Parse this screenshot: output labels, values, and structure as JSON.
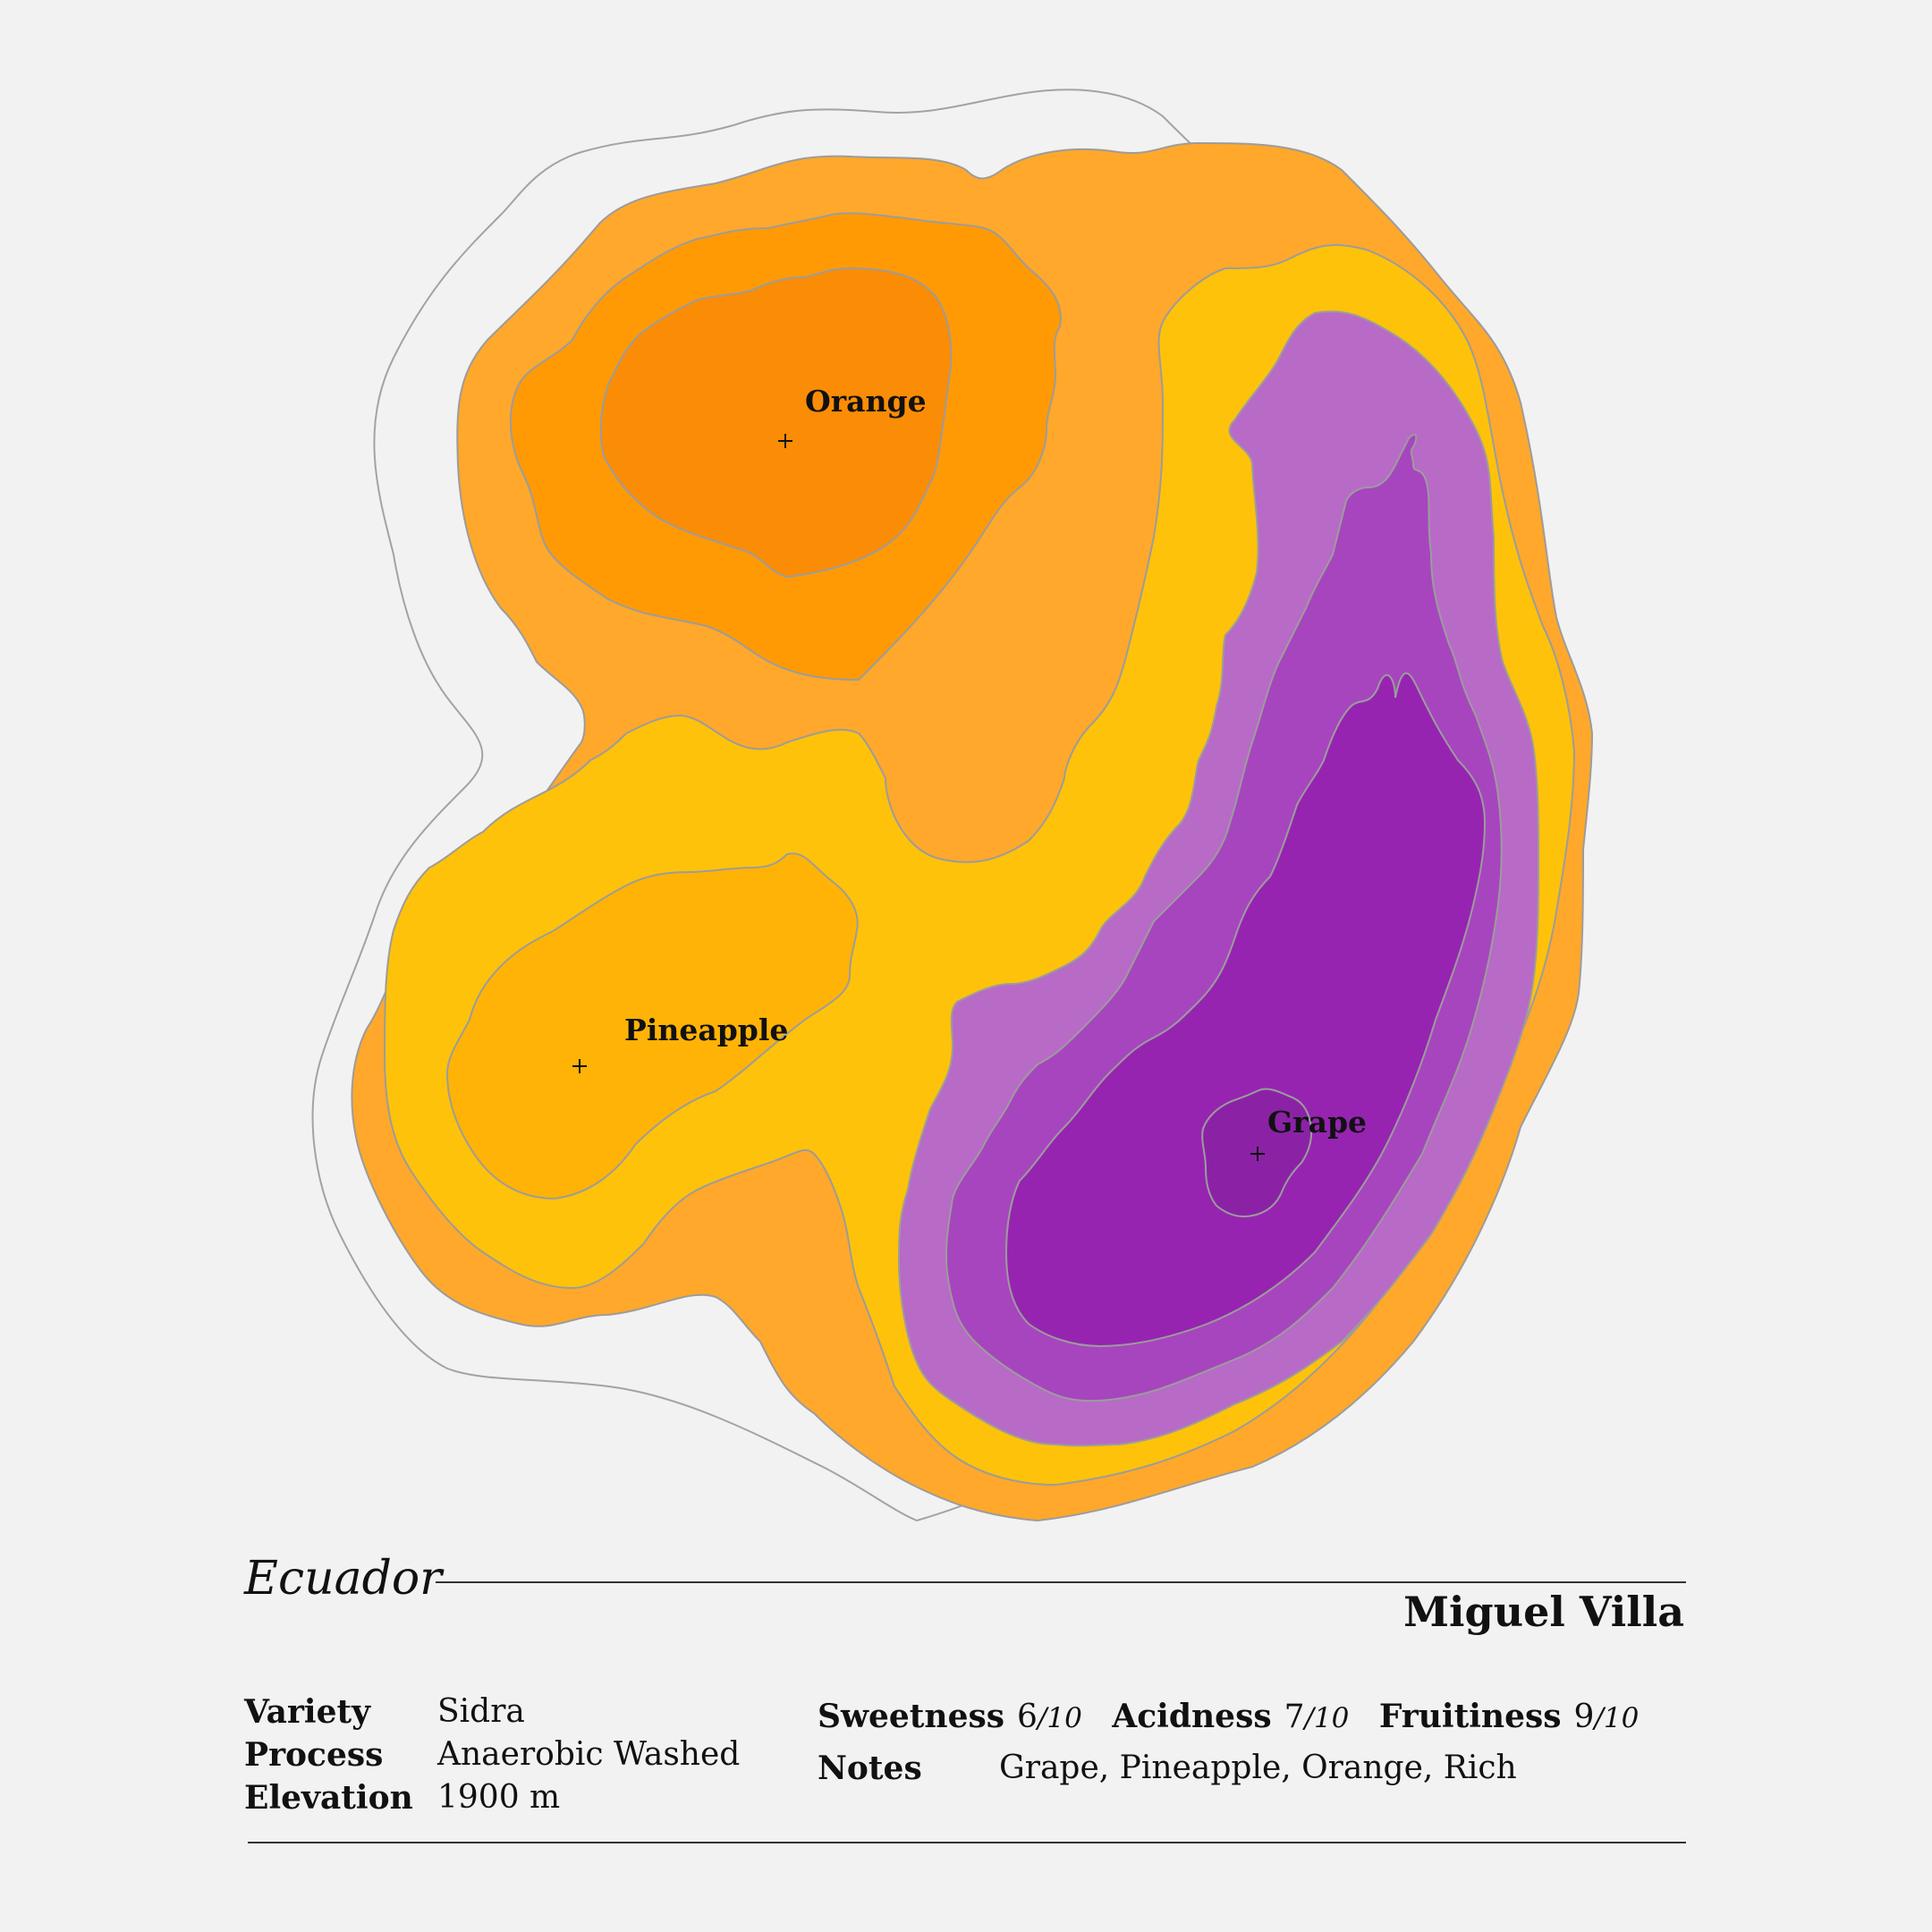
{
  "colors": {
    "background": "#f2f2f2",
    "outer_contour": "#a3a3a3",
    "orange_ring": "#ffa82b",
    "yellow_ring": "#ffc20a",
    "orange_mid": "#ff9a05",
    "orange_peak": "#fb8c05",
    "pineapple_peak": "#ffb306",
    "grape_ring1": "#b86ac7",
    "grape_ring2": "#a745be",
    "grape_ring3": "#9624b1",
    "grape_peak": "#8b22a6"
  },
  "peaks": [
    {
      "id": "orange",
      "label": "Orange"
    },
    {
      "id": "pineapple",
      "label": "Pineapple"
    },
    {
      "id": "grape",
      "label": "Grape"
    }
  ],
  "origin": "Ecuador",
  "producer": "Miguel Villa",
  "details": [
    {
      "label": "Variety",
      "value": "Sidra"
    },
    {
      "label": "Process",
      "value": "Anaerobic Washed"
    },
    {
      "label": "Elevation",
      "value": "1900 m"
    }
  ],
  "scores": [
    {
      "label": "Sweetness",
      "value": "6",
      "denominator": "/10"
    },
    {
      "label": "Acidness",
      "value": "7",
      "denominator": "/10"
    },
    {
      "label": "Fruitiness",
      "value": "9",
      "denominator": "/10"
    }
  ],
  "notes": {
    "label": "Notes",
    "value": "Grape, Pineapple, Orange, Rich"
  }
}
